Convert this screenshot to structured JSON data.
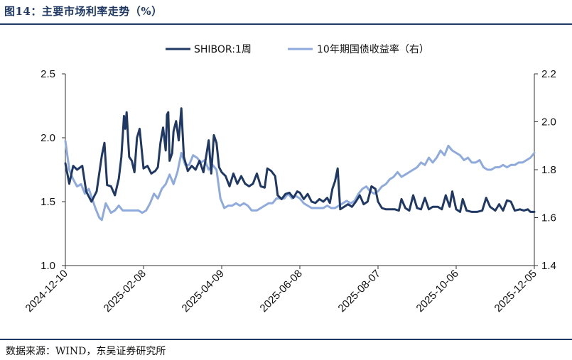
{
  "figure_title": "图14：主要市场利率走势（%）",
  "source_note": "数据来源：WIND，东吴证券研究所",
  "colors": {
    "shibor": "#1f3864",
    "bond": "#8faadc",
    "axis": "#333333"
  },
  "chart_data": {
    "type": "line",
    "legend_position": "top-center",
    "grid": false,
    "x_ticks": [
      "2024-12-10",
      "2025-02-08",
      "2025-04-09",
      "2025-06-08",
      "2025-08-07",
      "2025-10-06",
      "2025-12-05"
    ],
    "x_range": [
      "2024-12-10",
      "2025-12-05"
    ],
    "ylim_left": [
      1.0,
      2.5
    ],
    "y_ticks_left": [
      "1.0",
      "1.5",
      "2.0",
      "2.5"
    ],
    "ylim_right": [
      1.4,
      2.2
    ],
    "y_ticks_right": [
      "1.4",
      "1.6",
      "1.8",
      "2.0",
      "2.2"
    ],
    "series": [
      {
        "name": "SHIBOR:1周",
        "axis": "left",
        "points": [
          [
            "2024-12-10",
            1.8
          ],
          [
            "2024-12-13",
            1.64
          ],
          [
            "2024-12-16",
            1.78
          ],
          [
            "2024-12-19",
            1.75
          ],
          [
            "2024-12-23",
            1.78
          ],
          [
            "2024-12-26",
            1.58
          ],
          [
            "2024-12-30",
            1.5
          ],
          [
            "2025-01-03",
            1.58
          ],
          [
            "2025-01-07",
            1.86
          ],
          [
            "2025-01-09",
            1.96
          ],
          [
            "2025-01-11",
            1.63
          ],
          [
            "2025-01-14",
            1.62
          ],
          [
            "2025-01-17",
            1.55
          ],
          [
            "2025-01-20",
            1.68
          ],
          [
            "2025-01-22",
            1.85
          ],
          [
            "2025-01-24",
            2.17
          ],
          [
            "2025-01-25",
            2.07
          ],
          [
            "2025-01-26",
            2.2
          ],
          [
            "2025-01-28",
            1.85
          ],
          [
            "2025-01-30",
            1.82
          ],
          [
            "2025-02-01",
            1.73
          ],
          [
            "2025-02-03",
            2.0
          ],
          [
            "2025-02-05",
            2.07
          ],
          [
            "2025-02-08",
            1.76
          ],
          [
            "2025-02-11",
            1.78
          ],
          [
            "2025-02-14",
            1.72
          ],
          [
            "2025-02-17",
            1.74
          ],
          [
            "2025-02-19",
            1.77
          ],
          [
            "2025-02-21",
            1.96
          ],
          [
            "2025-02-23",
            2.08
          ],
          [
            "2025-02-25",
            1.9
          ],
          [
            "2025-02-26",
            2.18
          ],
          [
            "2025-02-27",
            2.2
          ],
          [
            "2025-02-28",
            1.82
          ],
          [
            "2025-03-02",
            1.88
          ],
          [
            "2025-03-03",
            2.05
          ],
          [
            "2025-03-05",
            2.13
          ],
          [
            "2025-03-07",
            1.98
          ],
          [
            "2025-03-09",
            2.23
          ],
          [
            "2025-03-11",
            1.85
          ],
          [
            "2025-03-14",
            1.74
          ],
          [
            "2025-03-17",
            1.78
          ],
          [
            "2025-03-20",
            1.75
          ],
          [
            "2025-03-23",
            1.82
          ],
          [
            "2025-03-26",
            1.73
          ],
          [
            "2025-03-28",
            1.85
          ],
          [
            "2025-03-30",
            1.98
          ],
          [
            "2025-04-01",
            1.72
          ],
          [
            "2025-04-03",
            2.02
          ],
          [
            "2025-04-05",
            1.96
          ],
          [
            "2025-04-07",
            1.77
          ],
          [
            "2025-04-09",
            1.73
          ],
          [
            "2025-04-12",
            1.7
          ],
          [
            "2025-04-15",
            1.62
          ],
          [
            "2025-04-18",
            1.72
          ],
          [
            "2025-04-21",
            1.64
          ],
          [
            "2025-04-24",
            1.7
          ],
          [
            "2025-04-27",
            1.64
          ],
          [
            "2025-04-30",
            1.62
          ],
          [
            "2025-05-03",
            1.64
          ],
          [
            "2025-05-06",
            1.72
          ],
          [
            "2025-05-09",
            1.62
          ],
          [
            "2025-05-12",
            1.61
          ],
          [
            "2025-05-14",
            1.76
          ],
          [
            "2025-05-17",
            1.74
          ],
          [
            "2025-05-20",
            1.7
          ],
          [
            "2025-05-22",
            1.55
          ],
          [
            "2025-05-25",
            1.52
          ],
          [
            "2025-05-28",
            1.56
          ],
          [
            "2025-05-31",
            1.57
          ],
          [
            "2025-06-03",
            1.53
          ],
          [
            "2025-06-06",
            1.58
          ],
          [
            "2025-06-08",
            1.57
          ],
          [
            "2025-06-11",
            1.52
          ],
          [
            "2025-06-14",
            1.56
          ],
          [
            "2025-06-17",
            1.5
          ],
          [
            "2025-06-20",
            1.49
          ],
          [
            "2025-06-23",
            1.52
          ],
          [
            "2025-06-26",
            1.5
          ],
          [
            "2025-06-29",
            1.53
          ],
          [
            "2025-07-01",
            1.49
          ],
          [
            "2025-07-03",
            1.6
          ],
          [
            "2025-07-05",
            1.66
          ],
          [
            "2025-07-07",
            1.76
          ],
          [
            "2025-07-09",
            1.44
          ],
          [
            "2025-07-12",
            1.46
          ],
          [
            "2025-07-15",
            1.48
          ],
          [
            "2025-07-18",
            1.46
          ],
          [
            "2025-07-21",
            1.5
          ],
          [
            "2025-07-24",
            1.55
          ],
          [
            "2025-07-27",
            1.48
          ],
          [
            "2025-07-30",
            1.5
          ],
          [
            "2025-08-02",
            1.62
          ],
          [
            "2025-08-05",
            1.6
          ],
          [
            "2025-08-07",
            1.5
          ],
          [
            "2025-08-10",
            1.45
          ],
          [
            "2025-08-13",
            1.44
          ],
          [
            "2025-08-16",
            1.44
          ],
          [
            "2025-08-20",
            1.44
          ],
          [
            "2025-08-23",
            1.43
          ],
          [
            "2025-08-25",
            1.52
          ],
          [
            "2025-08-28",
            1.45
          ],
          [
            "2025-08-31",
            1.43
          ],
          [
            "2025-09-03",
            1.55
          ],
          [
            "2025-09-06",
            1.45
          ],
          [
            "2025-09-09",
            1.44
          ],
          [
            "2025-09-12",
            1.53
          ],
          [
            "2025-09-15",
            1.44
          ],
          [
            "2025-09-18",
            1.46
          ],
          [
            "2025-09-22",
            1.46
          ],
          [
            "2025-09-25",
            1.44
          ],
          [
            "2025-09-28",
            1.55
          ],
          [
            "2025-10-01",
            1.46
          ],
          [
            "2025-10-03",
            1.58
          ],
          [
            "2025-10-06",
            1.44
          ],
          [
            "2025-10-09",
            1.42
          ],
          [
            "2025-10-11",
            1.52
          ],
          [
            "2025-10-14",
            1.43
          ],
          [
            "2025-10-18",
            1.42
          ],
          [
            "2025-10-22",
            1.42
          ],
          [
            "2025-10-26",
            1.43
          ],
          [
            "2025-10-29",
            1.53
          ],
          [
            "2025-11-01",
            1.46
          ],
          [
            "2025-11-05",
            1.43
          ],
          [
            "2025-11-08",
            1.48
          ],
          [
            "2025-11-11",
            1.43
          ],
          [
            "2025-11-14",
            1.51
          ],
          [
            "2025-11-17",
            1.5
          ],
          [
            "2025-11-20",
            1.43
          ],
          [
            "2025-11-24",
            1.44
          ],
          [
            "2025-11-27",
            1.43
          ],
          [
            "2025-11-30",
            1.44
          ],
          [
            "2025-12-02",
            1.42
          ],
          [
            "2025-12-05",
            1.42
          ]
        ]
      },
      {
        "name": "10年期国债收益率（右）",
        "axis": "right",
        "points": [
          [
            "2024-12-10",
            1.92
          ],
          [
            "2024-12-13",
            1.8
          ],
          [
            "2024-12-16",
            1.76
          ],
          [
            "2024-12-19",
            1.73
          ],
          [
            "2024-12-22",
            1.74
          ],
          [
            "2024-12-25",
            1.7
          ],
          [
            "2024-12-28",
            1.72
          ],
          [
            "2025-01-02",
            1.64
          ],
          [
            "2025-01-05",
            1.6
          ],
          [
            "2025-01-07",
            1.59
          ],
          [
            "2025-01-10",
            1.66
          ],
          [
            "2025-01-14",
            1.62
          ],
          [
            "2025-01-17",
            1.63
          ],
          [
            "2025-01-20",
            1.65
          ],
          [
            "2025-01-23",
            1.63
          ],
          [
            "2025-01-26",
            1.63
          ],
          [
            "2025-01-29",
            1.63
          ],
          [
            "2025-02-01",
            1.63
          ],
          [
            "2025-02-04",
            1.63
          ],
          [
            "2025-02-07",
            1.62
          ],
          [
            "2025-02-10",
            1.63
          ],
          [
            "2025-02-13",
            1.66
          ],
          [
            "2025-02-16",
            1.7
          ],
          [
            "2025-02-19",
            1.68
          ],
          [
            "2025-02-22",
            1.72
          ],
          [
            "2025-02-25",
            1.74
          ],
          [
            "2025-02-28",
            1.78
          ],
          [
            "2025-03-03",
            1.74
          ],
          [
            "2025-03-06",
            1.79
          ],
          [
            "2025-03-09",
            1.87
          ],
          [
            "2025-03-12",
            1.82
          ],
          [
            "2025-03-15",
            1.82
          ],
          [
            "2025-03-18",
            1.86
          ],
          [
            "2025-03-21",
            1.85
          ],
          [
            "2025-03-24",
            1.83
          ],
          [
            "2025-03-27",
            1.84
          ],
          [
            "2025-03-30",
            1.8
          ],
          [
            "2025-04-02",
            1.82
          ],
          [
            "2025-04-05",
            1.8
          ],
          [
            "2025-04-08",
            1.68
          ],
          [
            "2025-04-11",
            1.64
          ],
          [
            "2025-04-14",
            1.65
          ],
          [
            "2025-04-17",
            1.65
          ],
          [
            "2025-04-20",
            1.66
          ],
          [
            "2025-04-23",
            1.65
          ],
          [
            "2025-04-26",
            1.66
          ],
          [
            "2025-04-29",
            1.65
          ],
          [
            "2025-05-02",
            1.63
          ],
          [
            "2025-05-06",
            1.63
          ],
          [
            "2025-05-09",
            1.64
          ],
          [
            "2025-05-12",
            1.65
          ],
          [
            "2025-05-15",
            1.66
          ],
          [
            "2025-05-18",
            1.66
          ],
          [
            "2025-05-21",
            1.68
          ],
          [
            "2025-05-24",
            1.68
          ],
          [
            "2025-05-27",
            1.68
          ],
          [
            "2025-05-30",
            1.7
          ],
          [
            "2025-06-02",
            1.68
          ],
          [
            "2025-06-05",
            1.69
          ],
          [
            "2025-06-08",
            1.68
          ],
          [
            "2025-06-11",
            1.66
          ],
          [
            "2025-06-14",
            1.65
          ],
          [
            "2025-06-17",
            1.64
          ],
          [
            "2025-06-20",
            1.64
          ],
          [
            "2025-06-23",
            1.64
          ],
          [
            "2025-06-26",
            1.64
          ],
          [
            "2025-06-29",
            1.65
          ],
          [
            "2025-07-02",
            1.64
          ],
          [
            "2025-07-05",
            1.64
          ],
          [
            "2025-07-08",
            1.65
          ],
          [
            "2025-07-11",
            1.66
          ],
          [
            "2025-07-14",
            1.67
          ],
          [
            "2025-07-17",
            1.66
          ],
          [
            "2025-07-20",
            1.67
          ],
          [
            "2025-07-23",
            1.7
          ],
          [
            "2025-07-26",
            1.72
          ],
          [
            "2025-07-29",
            1.73
          ],
          [
            "2025-08-01",
            1.71
          ],
          [
            "2025-08-04",
            1.7
          ],
          [
            "2025-08-07",
            1.71
          ],
          [
            "2025-08-10",
            1.73
          ],
          [
            "2025-08-13",
            1.74
          ],
          [
            "2025-08-16",
            1.76
          ],
          [
            "2025-08-19",
            1.77
          ],
          [
            "2025-08-22",
            1.79
          ],
          [
            "2025-08-25",
            1.77
          ],
          [
            "2025-08-28",
            1.78
          ],
          [
            "2025-08-31",
            1.79
          ],
          [
            "2025-09-03",
            1.8
          ],
          [
            "2025-09-06",
            1.81
          ],
          [
            "2025-09-09",
            1.83
          ],
          [
            "2025-09-12",
            1.82
          ],
          [
            "2025-09-15",
            1.85
          ],
          [
            "2025-09-18",
            1.83
          ],
          [
            "2025-09-21",
            1.85
          ],
          [
            "2025-09-24",
            1.88
          ],
          [
            "2025-09-27",
            1.86
          ],
          [
            "2025-09-30",
            1.9
          ],
          [
            "2025-10-03",
            1.88
          ],
          [
            "2025-10-06",
            1.87
          ],
          [
            "2025-10-09",
            1.86
          ],
          [
            "2025-10-12",
            1.84
          ],
          [
            "2025-10-15",
            1.85
          ],
          [
            "2025-10-18",
            1.83
          ],
          [
            "2025-10-21",
            1.83
          ],
          [
            "2025-10-24",
            1.84
          ],
          [
            "2025-10-27",
            1.81
          ],
          [
            "2025-10-30",
            1.8
          ],
          [
            "2025-11-02",
            1.8
          ],
          [
            "2025-11-05",
            1.81
          ],
          [
            "2025-11-08",
            1.81
          ],
          [
            "2025-11-11",
            1.82
          ],
          [
            "2025-11-14",
            1.81
          ],
          [
            "2025-11-17",
            1.82
          ],
          [
            "2025-11-20",
            1.82
          ],
          [
            "2025-11-23",
            1.83
          ],
          [
            "2025-11-26",
            1.83
          ],
          [
            "2025-11-29",
            1.84
          ],
          [
            "2025-12-02",
            1.85
          ],
          [
            "2025-12-05",
            1.87
          ]
        ]
      }
    ]
  }
}
